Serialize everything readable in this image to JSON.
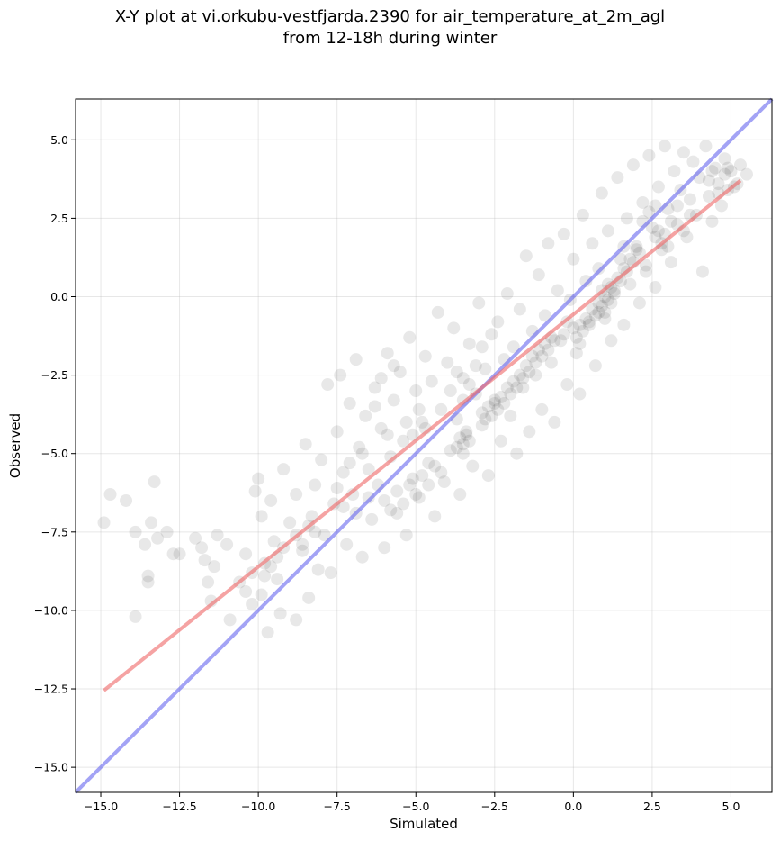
{
  "chart_data": {
    "type": "scatter",
    "title_line1": "X-Y plot at vi.orkubu-vestfjarda.2390 for air_temperature_at_2m_agl",
    "title_line2": "from 12-18h during winter",
    "xlabel": "Simulated",
    "ylabel": "Observed",
    "xlim": [
      -15.8,
      6.3
    ],
    "ylim": [
      -15.8,
      6.3
    ],
    "xticks": [
      -15.0,
      -12.5,
      -10.0,
      -7.5,
      -5.0,
      -2.5,
      0.0,
      2.5,
      5.0
    ],
    "yticks": [
      -15.0,
      -12.5,
      -10.0,
      -7.5,
      -5.0,
      -2.5,
      0.0,
      2.5,
      5.0
    ],
    "xtick_labels": [
      "−15.0",
      "−12.5",
      "−10.0",
      "−7.5",
      "−5.0",
      "−2.5",
      "0.0",
      "2.5",
      "5.0"
    ],
    "ytick_labels": [
      "−15.0",
      "−12.5",
      "−10.0",
      "−7.5",
      "−5.0",
      "−2.5",
      "0.0",
      "2.5",
      "5.0"
    ],
    "grid": true,
    "lines": [
      {
        "kind": "identity",
        "color": "#6666ee",
        "x": [
          -15.8,
          6.3
        ],
        "y": [
          -15.8,
          6.3
        ]
      },
      {
        "kind": "regression",
        "color": "#ee6666",
        "x": [
          -14.9,
          5.3
        ],
        "y": [
          -12.55,
          3.7
        ]
      }
    ],
    "point_color": "#000000",
    "points": [
      [
        -14.9,
        -7.2
      ],
      [
        -14.7,
        -6.3
      ],
      [
        -14.2,
        -6.5
      ],
      [
        -13.9,
        -10.2
      ],
      [
        -13.9,
        -7.5
      ],
      [
        -13.6,
        -7.9
      ],
      [
        -13.5,
        -8.9
      ],
      [
        -13.5,
        -9.1
      ],
      [
        -13.4,
        -7.2
      ],
      [
        -13.3,
        -5.9
      ],
      [
        -13.2,
        -7.7
      ],
      [
        -12.9,
        -7.5
      ],
      [
        -12.7,
        -8.2
      ],
      [
        -12.5,
        -8.2
      ],
      [
        -12.0,
        -7.7
      ],
      [
        -11.8,
        -8.0
      ],
      [
        -11.7,
        -8.4
      ],
      [
        -11.6,
        -9.1
      ],
      [
        -11.5,
        -9.7
      ],
      [
        -11.4,
        -8.6
      ],
      [
        -11.3,
        -7.6
      ],
      [
        -11.0,
        -7.9
      ],
      [
        -10.9,
        -10.3
      ],
      [
        -10.6,
        -9.1
      ],
      [
        -10.4,
        -8.2
      ],
      [
        -10.2,
        -9.8
      ],
      [
        -10.1,
        -6.2
      ],
      [
        -10.0,
        -5.8
      ],
      [
        -9.9,
        -7.0
      ],
      [
        -9.9,
        -9.5
      ],
      [
        -9.8,
        -8.5
      ],
      [
        -9.7,
        -10.7
      ],
      [
        -9.6,
        -6.5
      ],
      [
        -9.5,
        -7.8
      ],
      [
        -9.4,
        -9.0
      ],
      [
        -9.3,
        -10.1
      ],
      [
        -9.2,
        -5.5
      ],
      [
        -9.0,
        -7.2
      ],
      [
        -8.8,
        -6.3
      ],
      [
        -8.8,
        -10.3
      ],
      [
        -8.6,
        -8.1
      ],
      [
        -8.5,
        -4.7
      ],
      [
        -8.4,
        -9.6
      ],
      [
        -8.3,
        -7.0
      ],
      [
        -8.2,
        -6.0
      ],
      [
        -8.1,
        -8.7
      ],
      [
        -8.0,
        -5.2
      ],
      [
        -7.9,
        -7.6
      ],
      [
        -7.8,
        -2.8
      ],
      [
        -7.7,
        -8.8
      ],
      [
        -7.6,
        -6.6
      ],
      [
        -7.5,
        -4.3
      ],
      [
        -7.4,
        -2.5
      ],
      [
        -7.3,
        -5.6
      ],
      [
        -7.2,
        -7.9
      ],
      [
        -7.1,
        -3.4
      ],
      [
        -7.0,
        -6.3
      ],
      [
        -6.9,
        -2.0
      ],
      [
        -6.8,
        -4.8
      ],
      [
        -6.7,
        -8.3
      ],
      [
        -6.6,
        -3.8
      ],
      [
        -6.5,
        -5.5
      ],
      [
        -6.4,
        -7.1
      ],
      [
        -6.3,
        -2.9
      ],
      [
        -6.2,
        -6.0
      ],
      [
        -6.1,
        -4.2
      ],
      [
        -6.0,
        -8.0
      ],
      [
        -5.9,
        -1.8
      ],
      [
        -5.8,
        -5.1
      ],
      [
        -5.7,
        -3.3
      ],
      [
        -5.6,
        -6.9
      ],
      [
        -5.5,
        -2.4
      ],
      [
        -5.4,
        -4.6
      ],
      [
        -5.3,
        -7.6
      ],
      [
        -5.2,
        -1.3
      ],
      [
        -5.1,
        -5.8
      ],
      [
        -5.0,
        -3.0
      ],
      [
        -4.9,
        -6.4
      ],
      [
        -4.8,
        -4.0
      ],
      [
        -4.7,
        -1.9
      ],
      [
        -4.6,
        -5.3
      ],
      [
        -4.5,
        -2.7
      ],
      [
        -4.4,
        -7.0
      ],
      [
        -4.3,
        -0.5
      ],
      [
        -4.2,
        -3.6
      ],
      [
        -4.1,
        -5.9
      ],
      [
        -4.0,
        -2.1
      ],
      [
        -3.9,
        -4.9
      ],
      [
        -3.8,
        -1.0
      ],
      [
        -3.7,
        -3.9
      ],
      [
        -3.6,
        -6.3
      ],
      [
        -3.5,
        -2.6
      ],
      [
        -3.4,
        -4.4
      ],
      [
        -3.3,
        -1.5
      ],
      [
        -3.2,
        -5.4
      ],
      [
        -3.1,
        -3.1
      ],
      [
        -3.0,
        -0.2
      ],
      [
        -2.9,
        -4.1
      ],
      [
        -2.8,
        -2.3
      ],
      [
        -2.7,
        -5.7
      ],
      [
        -2.6,
        -1.2
      ],
      [
        -2.5,
        -3.4
      ],
      [
        -2.4,
        -0.8
      ],
      [
        -2.3,
        -4.6
      ],
      [
        -2.2,
        -2.0
      ],
      [
        -2.1,
        0.1
      ],
      [
        -2.0,
        -3.8
      ],
      [
        -1.9,
        -1.6
      ],
      [
        -1.8,
        -5.0
      ],
      [
        -1.7,
        -0.4
      ],
      [
        -1.6,
        -2.9
      ],
      [
        -1.5,
        1.3
      ],
      [
        -1.4,
        -4.3
      ],
      [
        -1.3,
        -1.1
      ],
      [
        -1.2,
        -2.5
      ],
      [
        -1.1,
        0.7
      ],
      [
        -1.0,
        -3.6
      ],
      [
        -0.9,
        -0.6
      ],
      [
        -0.8,
        1.7
      ],
      [
        -0.7,
        -2.1
      ],
      [
        -0.6,
        -4.0
      ],
      [
        -0.5,
        0.2
      ],
      [
        -0.4,
        -1.4
      ],
      [
        -0.3,
        2.0
      ],
      [
        -0.2,
        -2.8
      ],
      [
        -0.1,
        -0.1
      ],
      [
        0.0,
        1.2
      ],
      [
        0.1,
        -1.8
      ],
      [
        0.2,
        -3.1
      ],
      [
        0.3,
        2.6
      ],
      [
        0.4,
        0.5
      ],
      [
        0.5,
        -0.9
      ],
      [
        0.6,
        1.7
      ],
      [
        0.7,
        -2.2
      ],
      [
        0.8,
        0.9
      ],
      [
        0.9,
        3.3
      ],
      [
        1.0,
        -0.5
      ],
      [
        1.1,
        2.1
      ],
      [
        1.2,
        -1.4
      ],
      [
        1.3,
        0.1
      ],
      [
        1.4,
        3.8
      ],
      [
        1.5,
        1.2
      ],
      [
        1.6,
        -0.9
      ],
      [
        1.7,
        2.5
      ],
      [
        1.8,
        0.4
      ],
      [
        1.9,
        4.2
      ],
      [
        2.0,
        1.6
      ],
      [
        2.1,
        -0.2
      ],
      [
        2.2,
        3.0
      ],
      [
        2.3,
        1.0
      ],
      [
        2.4,
        4.5
      ],
      [
        2.5,
        2.2
      ],
      [
        2.6,
        0.3
      ],
      [
        2.7,
        3.5
      ],
      [
        2.8,
        1.5
      ],
      [
        2.9,
        4.8
      ],
      [
        3.0,
        2.8
      ],
      [
        3.1,
        1.1
      ],
      [
        3.2,
        4.0
      ],
      [
        3.3,
        2.3
      ],
      [
        3.4,
        3.4
      ],
      [
        3.5,
        4.6
      ],
      [
        3.6,
        1.9
      ],
      [
        3.7,
        3.1
      ],
      [
        3.8,
        4.3
      ],
      [
        3.9,
        2.6
      ],
      [
        4.0,
        3.8
      ],
      [
        4.1,
        0.8
      ],
      [
        4.2,
        4.8
      ],
      [
        4.3,
        3.2
      ],
      [
        4.4,
        2.4
      ],
      [
        4.5,
        4.1
      ],
      [
        4.6,
        3.6
      ],
      [
        4.7,
        2.9
      ],
      [
        4.8,
        4.4
      ],
      [
        4.9,
        3.4
      ],
      [
        5.0,
        4.0
      ],
      [
        5.2,
        3.6
      ],
      [
        5.3,
        4.2
      ],
      [
        5.5,
        3.9
      ],
      [
        -3.6,
        -4.5
      ],
      [
        -3.5,
        -4.7
      ],
      [
        -3.4,
        -4.3
      ],
      [
        -3.3,
        -4.6
      ],
      [
        -3.7,
        -4.8
      ],
      [
        -3.5,
        -5.0
      ],
      [
        -2.9,
        -3.7
      ],
      [
        -2.8,
        -3.9
      ],
      [
        -2.7,
        -3.5
      ],
      [
        -2.6,
        -3.8
      ],
      [
        -2.5,
        -3.3
      ],
      [
        -2.4,
        -3.6
      ],
      [
        -2.3,
        -3.2
      ],
      [
        -2.2,
        -3.4
      ],
      [
        -2.1,
        -2.9
      ],
      [
        -2.0,
        -3.1
      ],
      [
        -1.9,
        -2.7
      ],
      [
        -1.8,
        -2.9
      ],
      [
        -1.7,
        -2.5
      ],
      [
        -1.6,
        -2.6
      ],
      [
        -1.5,
        -2.2
      ],
      [
        -1.4,
        -2.4
      ],
      [
        -1.3,
        -1.9
      ],
      [
        -1.2,
        -2.1
      ],
      [
        -1.1,
        -1.7
      ],
      [
        -1.0,
        -1.9
      ],
      [
        -0.9,
        -1.5
      ],
      [
        -0.8,
        -1.7
      ],
      [
        -0.7,
        -1.3
      ],
      [
        -0.6,
        -1.4
      ],
      [
        0.2,
        -0.9
      ],
      [
        0.3,
        -1.1
      ],
      [
        0.4,
        -0.7
      ],
      [
        0.5,
        -0.8
      ],
      [
        0.6,
        -0.4
      ],
      [
        0.7,
        -0.6
      ],
      [
        0.8,
        -0.2
      ],
      [
        0.9,
        -0.3
      ],
      [
        1.0,
        0.0
      ],
      [
        1.1,
        -0.1
      ],
      [
        1.2,
        0.3
      ],
      [
        1.3,
        0.2
      ],
      [
        1.4,
        0.6
      ],
      [
        1.5,
        0.5
      ],
      [
        1.6,
        0.9
      ],
      [
        1.7,
        0.8
      ],
      [
        1.8,
        1.2
      ],
      [
        1.9,
        1.1
      ],
      [
        2.0,
        1.5
      ],
      [
        2.1,
        1.4
      ],
      [
        0.0,
        -1.0
      ],
      [
        0.1,
        -1.3
      ],
      [
        0.2,
        -1.5
      ],
      [
        -0.2,
        -0.8
      ],
      [
        -0.3,
        -1.2
      ],
      [
        0.9,
        0.2
      ],
      [
        1.1,
        0.4
      ],
      [
        0.8,
        -0.5
      ],
      [
        1.0,
        -0.7
      ],
      [
        1.2,
        -0.2
      ],
      [
        -6.0,
        -6.5
      ],
      [
        -5.8,
        -6.8
      ],
      [
        -5.6,
        -6.2
      ],
      [
        -5.4,
        -6.6
      ],
      [
        -5.2,
        -6.0
      ],
      [
        -5.0,
        -6.3
      ],
      [
        -4.8,
        -5.7
      ],
      [
        -4.6,
        -6.0
      ],
      [
        -4.4,
        -5.4
      ],
      [
        -4.2,
        -5.6
      ],
      [
        -7.5,
        -6.1
      ],
      [
        -7.3,
        -6.7
      ],
      [
        -7.1,
        -5.3
      ],
      [
        -6.9,
        -6.9
      ],
      [
        -6.7,
        -5.0
      ],
      [
        -6.5,
        -6.4
      ],
      [
        -8.8,
        -7.6
      ],
      [
        -8.6,
        -7.9
      ],
      [
        -8.4,
        -7.3
      ],
      [
        -8.2,
        -7.5
      ],
      [
        -9.8,
        -8.9
      ],
      [
        -9.6,
        -8.6
      ],
      [
        -9.4,
        -8.3
      ],
      [
        -9.2,
        -8.0
      ],
      [
        -10.4,
        -9.4
      ],
      [
        -10.2,
        -8.8
      ],
      [
        -5.3,
        -4.0
      ],
      [
        -5.1,
        -4.4
      ],
      [
        -4.9,
        -3.6
      ],
      [
        -4.7,
        -4.2
      ],
      [
        -3.9,
        -3.0
      ],
      [
        -3.7,
        -2.4
      ],
      [
        -3.5,
        -3.3
      ],
      [
        -3.3,
        -2.8
      ],
      [
        -3.1,
        -2.2
      ],
      [
        -2.9,
        -1.6
      ],
      [
        -6.3,
        -3.5
      ],
      [
        -6.1,
        -2.6
      ],
      [
        -5.9,
        -4.4
      ],
      [
        -5.7,
        -2.2
      ],
      [
        2.6,
        1.9
      ],
      [
        2.7,
        2.1
      ],
      [
        2.8,
        1.7
      ],
      [
        2.9,
        2.0
      ],
      [
        3.0,
        1.6
      ],
      [
        3.1,
        2.4
      ],
      [
        3.3,
        2.9
      ],
      [
        3.5,
        2.1
      ],
      [
        3.7,
        2.6
      ],
      [
        4.3,
        3.7
      ],
      [
        4.4,
        4.0
      ],
      [
        4.6,
        3.3
      ],
      [
        4.8,
        3.9
      ],
      [
        4.9,
        4.1
      ],
      [
        5.1,
        3.5
      ],
      [
        2.2,
        2.4
      ],
      [
        2.4,
        2.7
      ],
      [
        2.6,
        2.9
      ],
      [
        2.3,
        0.8
      ],
      [
        1.6,
        1.6
      ]
    ]
  }
}
